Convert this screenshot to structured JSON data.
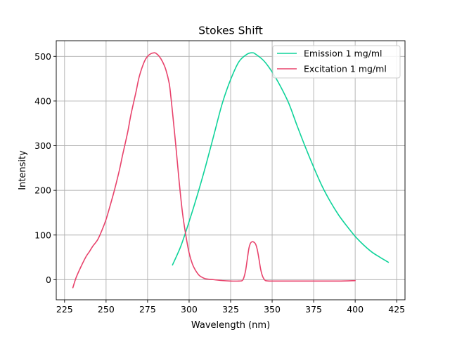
{
  "chart_data": {
    "type": "line",
    "title": "Stokes Shift",
    "xlabel": "Wavelength (nm)",
    "ylabel": "Intensity",
    "xlim": [
      220,
      430
    ],
    "ylim": [
      -45,
      535
    ],
    "xticks": [
      225,
      250,
      275,
      300,
      325,
      350,
      375,
      400,
      425
    ],
    "yticks": [
      0,
      100,
      200,
      300,
      400,
      500
    ],
    "grid": true,
    "legend_position": "top-right",
    "series": [
      {
        "name": "Emission 1 mg/ml",
        "color": "#0fd39a",
        "x": [
          290,
          295,
          300,
          305,
          310,
          315,
          320,
          325,
          330,
          335,
          338,
          340,
          345,
          350,
          355,
          360,
          365,
          370,
          375,
          380,
          385,
          390,
          395,
          400,
          405,
          410,
          415,
          420
        ],
        "y": [
          33,
          75,
          130,
          190,
          255,
          325,
          395,
          448,
          488,
          505,
          508,
          505,
          490,
          465,
          433,
          395,
          345,
          297,
          252,
          210,
          175,
          145,
          120,
          97,
          78,
          62,
          50,
          39
        ]
      },
      {
        "name": "Excitation 1 mg/ml",
        "color": "#e8436c",
        "x": [
          230,
          232,
          235,
          238,
          240,
          242,
          245,
          248,
          250,
          252,
          255,
          258,
          260,
          263,
          265,
          268,
          270,
          273,
          275,
          277,
          279,
          280,
          282,
          284,
          286,
          288,
          289,
          290,
          292,
          294,
          296,
          298,
          300,
          302,
          304,
          306,
          308,
          310,
          315,
          320,
          325,
          330,
          332,
          333,
          334,
          335,
          336,
          337,
          338,
          339,
          340,
          341,
          342,
          343,
          344,
          345,
          346,
          348,
          350,
          360,
          370,
          380,
          390,
          400
        ],
        "y": [
          -18,
          5,
          30,
          52,
          63,
          75,
          90,
          115,
          135,
          160,
          200,
          245,
          280,
          330,
          370,
          420,
          455,
          488,
          500,
          506,
          508,
          507,
          500,
          488,
          470,
          440,
          410,
          375,
          300,
          220,
          150,
          100,
          60,
          35,
          20,
          10,
          5,
          2,
          0,
          -2,
          -3,
          -3,
          -2,
          5,
          20,
          45,
          70,
          82,
          85,
          84,
          80,
          68,
          48,
          25,
          10,
          2,
          -2,
          -3,
          -3,
          -3,
          -3,
          -3,
          -3,
          -2
        ]
      }
    ]
  }
}
